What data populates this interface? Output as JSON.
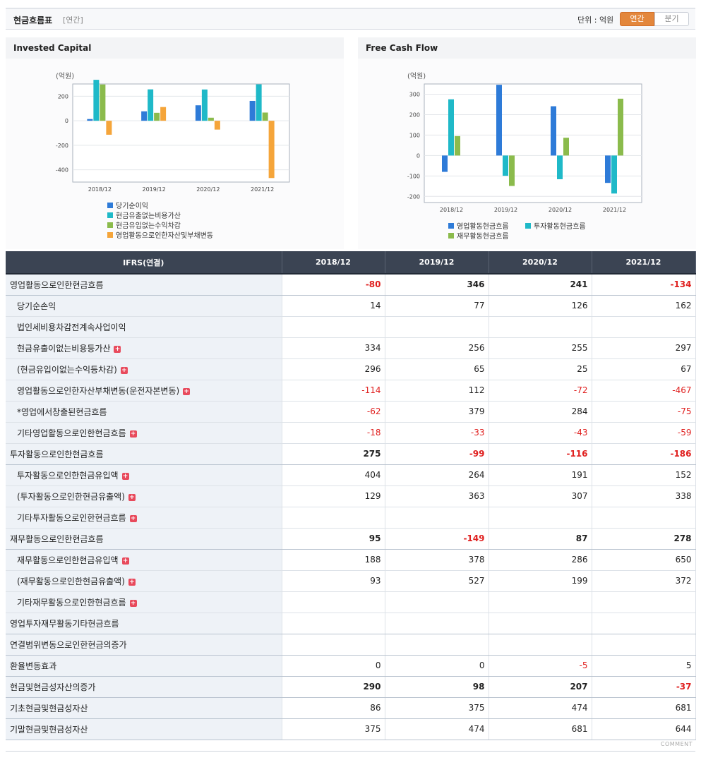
{
  "header": {
    "title": "현금흐름표",
    "subtitle": "[연간]",
    "unit": "단위 : 억원",
    "toggle_annual": "연간",
    "toggle_quarter": "분기"
  },
  "chart_data": [
    {
      "type": "bar",
      "title": "Invested Capital",
      "ylabel": "(억원)",
      "categories": [
        "2018/12",
        "2019/12",
        "2020/12",
        "2021/12"
      ],
      "ylim": [
        -500,
        300
      ],
      "yticks": [
        "200",
        "0",
        "-200",
        "-400"
      ],
      "legend_position": "bottom",
      "series": [
        {
          "name": "당기순이익",
          "color": "#2e7bd8",
          "values": [
            14,
            77,
            126,
            162
          ]
        },
        {
          "name": "현금유출없는비용가산",
          "color": "#1fb9c8",
          "values": [
            334,
            256,
            255,
            297
          ]
        },
        {
          "name": "현금유입없는수익차감",
          "color": "#8bbb4c",
          "values": [
            296,
            65,
            25,
            67
          ]
        },
        {
          "name": "영업활동으로인한자산및부채변동",
          "color": "#f5a53a",
          "values": [
            -114,
            112,
            -72,
            -467
          ]
        }
      ]
    },
    {
      "type": "bar",
      "title": "Free Cash Flow",
      "ylabel": "(억원)",
      "categories": [
        "2018/12",
        "2019/12",
        "2020/12",
        "2021/12"
      ],
      "ylim": [
        -230,
        350
      ],
      "yticks": [
        "300",
        "200",
        "100",
        "0",
        "-100",
        "-200"
      ],
      "legend_position": "bottom",
      "series": [
        {
          "name": "영업활동현금흐름",
          "color": "#2e7bd8",
          "values": [
            -80,
            346,
            241,
            -134
          ]
        },
        {
          "name": "투자활동현금흐름",
          "color": "#1fb9c8",
          "values": [
            275,
            -99,
            -116,
            -186
          ]
        },
        {
          "name": "재무활동현금흐름",
          "color": "#8bbb4c",
          "values": [
            95,
            -149,
            87,
            278
          ]
        }
      ]
    }
  ],
  "table": {
    "head_label": "IFRS(연결)",
    "columns": [
      "2018/12",
      "2019/12",
      "2020/12",
      "2021/12"
    ],
    "rows": [
      {
        "label": "영업활동으로인한현금흐름",
        "main": true,
        "values": [
          "-80",
          "346",
          "241",
          "-134"
        ]
      },
      {
        "label": "당기순손익",
        "main": false,
        "values": [
          "14",
          "77",
          "126",
          "162"
        ]
      },
      {
        "label": "법인세비용차감전계속사업이익",
        "main": false,
        "values": [
          "",
          "",
          "",
          ""
        ]
      },
      {
        "label": "현금유출이없는비용등가산",
        "main": false,
        "plus": true,
        "values": [
          "334",
          "256",
          "255",
          "297"
        ]
      },
      {
        "label": "(현금유입이없는수익등차감)",
        "main": false,
        "plus": true,
        "values": [
          "296",
          "65",
          "25",
          "67"
        ]
      },
      {
        "label": "영업활동으로인한자산부채변동(운전자본변동)",
        "main": false,
        "plus": true,
        "values": [
          "-114",
          "112",
          "-72",
          "-467"
        ]
      },
      {
        "label": "*영업에서창출된현금흐름",
        "main": false,
        "values": [
          "-62",
          "379",
          "284",
          "-75"
        ]
      },
      {
        "label": "기타영업활동으로인한현금흐름",
        "main": false,
        "plus": true,
        "values": [
          "-18",
          "-33",
          "-43",
          "-59"
        ]
      },
      {
        "label": "투자활동으로인한현금흐름",
        "main": true,
        "values": [
          "275",
          "-99",
          "-116",
          "-186"
        ]
      },
      {
        "label": "투자활동으로인한현금유입액",
        "main": false,
        "plus": true,
        "values": [
          "404",
          "264",
          "191",
          "152"
        ]
      },
      {
        "label": "(투자활동으로인한현금유출액)",
        "main": false,
        "plus": true,
        "values": [
          "129",
          "363",
          "307",
          "338"
        ]
      },
      {
        "label": "기타투자활동으로인한현금흐름",
        "main": false,
        "plus": true,
        "values": [
          "",
          "",
          "",
          ""
        ]
      },
      {
        "label": "재무활동으로인한현금흐름",
        "main": true,
        "values": [
          "95",
          "-149",
          "87",
          "278"
        ]
      },
      {
        "label": "재무활동으로인한현금유입액",
        "main": false,
        "plus": true,
        "values": [
          "188",
          "378",
          "286",
          "650"
        ]
      },
      {
        "label": "(재무활동으로인한현금유출액)",
        "main": false,
        "plus": true,
        "values": [
          "93",
          "527",
          "199",
          "372"
        ]
      },
      {
        "label": "기타재무활동으로인한현금흐름",
        "main": false,
        "plus": true,
        "values": [
          "",
          "",
          "",
          ""
        ]
      },
      {
        "label": "영업투자재무활동기타현금흐름",
        "main": true,
        "values": [
          "",
          "",
          "",
          ""
        ]
      },
      {
        "label": "연결범위변동으로인한현금의증가",
        "main": true,
        "values": [
          "",
          "",
          "",
          ""
        ]
      },
      {
        "label": "환율변동효과",
        "main": true,
        "values": [
          "0",
          "0",
          "-5",
          "5"
        ]
      },
      {
        "label": "현금및현금성자산의증가",
        "main": true,
        "bold": true,
        "values": [
          "290",
          "98",
          "207",
          "-37"
        ]
      },
      {
        "label": "기초현금및현금성자산",
        "main": true,
        "values": [
          "86",
          "375",
          "474",
          "681"
        ]
      },
      {
        "label": "기말현금및현금성자산",
        "main": true,
        "values": [
          "375",
          "474",
          "681",
          "644"
        ]
      }
    ]
  },
  "footer": {
    "comment": "COMMENT"
  }
}
